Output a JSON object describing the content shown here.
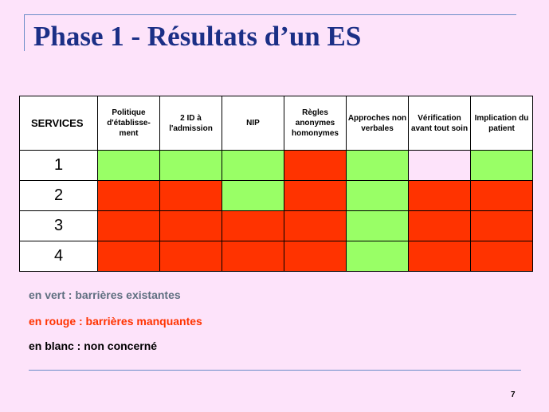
{
  "title": "Phase 1 - Résultats d’un ES",
  "table": {
    "corner_header": "SERVICES",
    "columns": [
      "Politique d'établisse-ment",
      "2 ID à l'admission",
      "NIP",
      "Règles anonymes homonymes",
      "Approches non verbales",
      "Vérification avant tout soin",
      "Implication du patient"
    ],
    "rows": [
      {
        "service": "1",
        "cells": [
          "green",
          "green",
          "green",
          "red",
          "green",
          "white",
          "green"
        ]
      },
      {
        "service": "2",
        "cells": [
          "red",
          "red",
          "green",
          "red",
          "green",
          "red",
          "red"
        ]
      },
      {
        "service": "3",
        "cells": [
          "red",
          "red",
          "red",
          "red",
          "green",
          "red",
          "red"
        ]
      },
      {
        "service": "4",
        "cells": [
          "red",
          "red",
          "red",
          "red",
          "green",
          "red",
          "red"
        ]
      }
    ]
  },
  "colors": {
    "green": "#99ff66",
    "red": "#ff3300",
    "white": "#fde3fa",
    "title": "#1b2f86",
    "background": "#fde3fa"
  },
  "legend": {
    "green": "en vert : barrières existantes",
    "red": "en rouge : barrières manquantes",
    "white": "en blanc : non concerné"
  },
  "page_number": "7"
}
